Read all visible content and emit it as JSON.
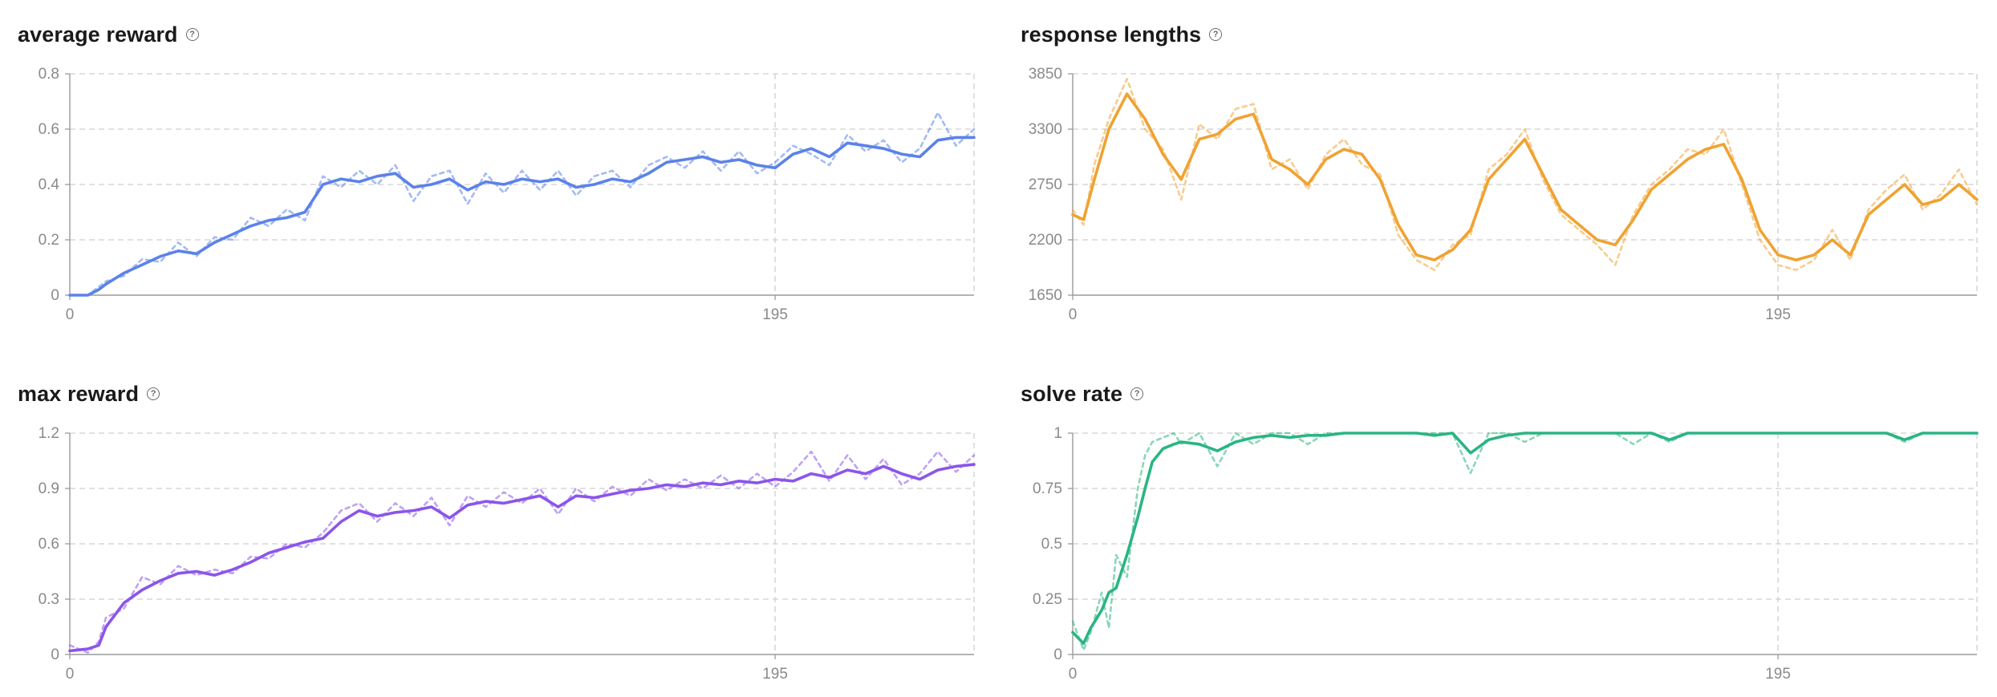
{
  "chart_data": [
    {
      "id": "avg",
      "type": "line",
      "title": "average reward",
      "color": "#5b82ea",
      "ylim": [
        0,
        0.8
      ],
      "yticks": [
        0,
        0.2,
        0.4,
        0.6,
        0.8
      ],
      "ytick_labels": [
        "0",
        "0.2",
        "0.4",
        "0.6",
        "0.8"
      ],
      "xlim": [
        0,
        250
      ],
      "xticks": [
        0,
        195
      ],
      "xtick_labels": [
        "0",
        "195"
      ],
      "grid": true,
      "series": [
        {
          "style": "solid",
          "x": [
            0,
            5,
            8,
            10,
            15,
            20,
            25,
            30,
            35,
            40,
            45,
            50,
            55,
            60,
            65,
            70,
            75,
            80,
            85,
            90,
            95,
            100,
            105,
            110,
            115,
            120,
            125,
            130,
            135,
            140,
            145,
            150,
            155,
            160,
            165,
            170,
            175,
            180,
            185,
            190,
            195,
            200,
            205,
            210,
            215,
            220,
            225,
            230,
            235,
            240,
            245,
            250
          ],
          "y": [
            0,
            0,
            0.02,
            0.04,
            0.08,
            0.11,
            0.14,
            0.16,
            0.15,
            0.19,
            0.22,
            0.25,
            0.27,
            0.28,
            0.3,
            0.4,
            0.42,
            0.41,
            0.43,
            0.44,
            0.39,
            0.4,
            0.42,
            0.38,
            0.41,
            0.4,
            0.42,
            0.41,
            0.42,
            0.39,
            0.4,
            0.42,
            0.41,
            0.44,
            0.48,
            0.49,
            0.5,
            0.48,
            0.49,
            0.47,
            0.46,
            0.51,
            0.53,
            0.5,
            0.55,
            0.54,
            0.53,
            0.51,
            0.5,
            0.56,
            0.57,
            0.57
          ]
        },
        {
          "style": "dashed",
          "x": [
            0,
            5,
            8,
            10,
            15,
            20,
            25,
            30,
            35,
            40,
            45,
            50,
            55,
            60,
            65,
            70,
            75,
            80,
            85,
            90,
            95,
            100,
            105,
            110,
            115,
            120,
            125,
            130,
            135,
            140,
            145,
            150,
            155,
            160,
            165,
            170,
            175,
            180,
            185,
            190,
            195,
            200,
            205,
            210,
            215,
            220,
            225,
            230,
            235,
            240,
            245,
            250
          ],
          "y": [
            0,
            0,
            0.03,
            0.05,
            0.07,
            0.13,
            0.12,
            0.19,
            0.14,
            0.21,
            0.2,
            0.28,
            0.25,
            0.31,
            0.27,
            0.43,
            0.39,
            0.45,
            0.4,
            0.47,
            0.34,
            0.43,
            0.45,
            0.33,
            0.44,
            0.37,
            0.45,
            0.38,
            0.45,
            0.36,
            0.43,
            0.45,
            0.39,
            0.47,
            0.5,
            0.46,
            0.52,
            0.45,
            0.52,
            0.44,
            0.48,
            0.54,
            0.51,
            0.47,
            0.58,
            0.52,
            0.56,
            0.48,
            0.53,
            0.66,
            0.54,
            0.6
          ]
        }
      ]
    },
    {
      "id": "resp",
      "type": "line",
      "title": "response lengths",
      "color": "#f0a232",
      "ylim": [
        1650,
        3850
      ],
      "yticks": [
        1650,
        2200,
        2750,
        3300,
        3850
      ],
      "ytick_labels": [
        "1650",
        "2200",
        "2750",
        "3300",
        "3850"
      ],
      "xlim": [
        0,
        250
      ],
      "xticks": [
        0,
        195
      ],
      "xtick_labels": [
        "0",
        "195"
      ],
      "grid": true,
      "series": [
        {
          "style": "solid",
          "x": [
            0,
            3,
            6,
            10,
            15,
            20,
            25,
            30,
            35,
            40,
            45,
            50,
            55,
            60,
            65,
            70,
            75,
            80,
            85,
            90,
            95,
            100,
            105,
            110,
            115,
            120,
            125,
            130,
            135,
            140,
            145,
            150,
            155,
            160,
            165,
            170,
            175,
            180,
            185,
            190,
            195,
            200,
            205,
            210,
            215,
            220,
            225,
            230,
            235,
            240,
            245,
            250
          ],
          "y": [
            2450,
            2400,
            2800,
            3300,
            3650,
            3400,
            3050,
            2800,
            3200,
            3250,
            3400,
            3450,
            3000,
            2900,
            2750,
            3000,
            3100,
            3050,
            2800,
            2350,
            2050,
            2000,
            2100,
            2300,
            2800,
            3000,
            3200,
            2850,
            2500,
            2350,
            2200,
            2150,
            2400,
            2700,
            2850,
            3000,
            3100,
            3150,
            2800,
            2300,
            2050,
            2000,
            2050,
            2200,
            2050,
            2450,
            2600,
            2750,
            2550,
            2600,
            2750,
            2600
          ]
        },
        {
          "style": "dashed",
          "x": [
            0,
            3,
            6,
            10,
            15,
            20,
            25,
            30,
            35,
            40,
            45,
            50,
            55,
            60,
            65,
            70,
            75,
            80,
            85,
            90,
            95,
            100,
            105,
            110,
            115,
            120,
            125,
            130,
            135,
            140,
            145,
            150,
            155,
            160,
            165,
            170,
            175,
            180,
            185,
            190,
            195,
            200,
            205,
            210,
            215,
            220,
            225,
            230,
            235,
            240,
            245,
            250
          ],
          "y": [
            2500,
            2350,
            2950,
            3400,
            3800,
            3300,
            3100,
            2600,
            3350,
            3200,
            3500,
            3550,
            2900,
            3000,
            2700,
            3050,
            3200,
            2950,
            2850,
            2250,
            2000,
            1900,
            2150,
            2250,
            2900,
            3050,
            3300,
            2800,
            2450,
            2300,
            2150,
            1950,
            2450,
            2750,
            2900,
            3100,
            3050,
            3300,
            2750,
            2200,
            1950,
            1900,
            2000,
            2300,
            2000,
            2500,
            2700,
            2850,
            2500,
            2650,
            2900,
            2550
          ]
        }
      ]
    },
    {
      "id": "max",
      "type": "line",
      "title": "max reward",
      "color": "#8b55ea",
      "ylim": [
        0,
        1.2
      ],
      "yticks": [
        0,
        0.3,
        0.6,
        0.9,
        1.2
      ],
      "ytick_labels": [
        "0",
        "0.3",
        "0.6",
        "0.9",
        "1.2"
      ],
      "xlim": [
        0,
        250
      ],
      "xticks": [
        0,
        195
      ],
      "xtick_labels": [
        "0",
        "195"
      ],
      "grid": true,
      "series": [
        {
          "style": "solid",
          "x": [
            0,
            5,
            8,
            10,
            15,
            20,
            25,
            30,
            35,
            40,
            45,
            50,
            55,
            60,
            65,
            70,
            75,
            80,
            85,
            90,
            95,
            100,
            105,
            110,
            115,
            120,
            125,
            130,
            135,
            140,
            145,
            150,
            155,
            160,
            165,
            170,
            175,
            180,
            185,
            190,
            195,
            200,
            205,
            210,
            215,
            220,
            225,
            230,
            235,
            240,
            245,
            250
          ],
          "y": [
            0.02,
            0.03,
            0.05,
            0.15,
            0.28,
            0.35,
            0.4,
            0.44,
            0.45,
            0.43,
            0.46,
            0.5,
            0.55,
            0.58,
            0.61,
            0.63,
            0.72,
            0.78,
            0.75,
            0.77,
            0.78,
            0.8,
            0.74,
            0.81,
            0.83,
            0.82,
            0.84,
            0.86,
            0.8,
            0.86,
            0.85,
            0.87,
            0.89,
            0.9,
            0.92,
            0.91,
            0.93,
            0.92,
            0.94,
            0.93,
            0.95,
            0.94,
            0.98,
            0.96,
            1.0,
            0.98,
            1.02,
            0.98,
            0.95,
            1.0,
            1.02,
            1.03
          ]
        },
        {
          "style": "dashed",
          "x": [
            0,
            5,
            8,
            10,
            15,
            20,
            25,
            30,
            35,
            40,
            45,
            50,
            55,
            60,
            65,
            70,
            75,
            80,
            85,
            90,
            95,
            100,
            105,
            110,
            115,
            120,
            125,
            130,
            135,
            140,
            145,
            150,
            155,
            160,
            165,
            170,
            175,
            180,
            185,
            190,
            195,
            200,
            205,
            210,
            215,
            220,
            225,
            230,
            235,
            240,
            245,
            250
          ],
          "y": [
            0.05,
            0.01,
            0.07,
            0.2,
            0.25,
            0.42,
            0.38,
            0.48,
            0.43,
            0.46,
            0.44,
            0.53,
            0.52,
            0.6,
            0.58,
            0.66,
            0.78,
            0.82,
            0.72,
            0.82,
            0.75,
            0.85,
            0.7,
            0.86,
            0.8,
            0.88,
            0.82,
            0.9,
            0.76,
            0.9,
            0.83,
            0.91,
            0.86,
            0.95,
            0.89,
            0.95,
            0.9,
            0.97,
            0.9,
            0.98,
            0.91,
            0.99,
            1.1,
            0.94,
            1.08,
            0.95,
            1.06,
            0.92,
            0.98,
            1.1,
            0.99,
            1.08
          ]
        }
      ]
    },
    {
      "id": "solve",
      "type": "line",
      "title": "solve rate",
      "color": "#2ab582",
      "ylim": [
        0,
        1
      ],
      "yticks": [
        0,
        0.25,
        0.5,
        0.75,
        1
      ],
      "ytick_labels": [
        "0",
        "0.25",
        "0.5",
        "0.75",
        "1"
      ],
      "xlim": [
        0,
        250
      ],
      "xticks": [
        0,
        195
      ],
      "xtick_labels": [
        "0",
        "195"
      ],
      "grid": true,
      "series": [
        {
          "style": "solid",
          "x": [
            0,
            3,
            5,
            8,
            10,
            12,
            15,
            18,
            20,
            22,
            25,
            28,
            30,
            35,
            40,
            45,
            50,
            55,
            60,
            65,
            70,
            75,
            80,
            85,
            90,
            95,
            100,
            105,
            110,
            115,
            120,
            125,
            130,
            135,
            140,
            145,
            150,
            155,
            160,
            165,
            170,
            175,
            180,
            185,
            190,
            195,
            200,
            205,
            210,
            215,
            220,
            225,
            230,
            235,
            240,
            245,
            250
          ],
          "y": [
            0.1,
            0.05,
            0.12,
            0.2,
            0.28,
            0.3,
            0.45,
            0.62,
            0.75,
            0.87,
            0.93,
            0.95,
            0.96,
            0.95,
            0.92,
            0.96,
            0.98,
            0.99,
            0.98,
            0.99,
            0.99,
            1,
            1,
            1,
            1,
            1,
            0.99,
            1,
            0.91,
            0.97,
            0.99,
            1,
            1,
            1,
            1,
            1,
            1,
            1,
            1,
            0.97,
            1,
            1,
            1,
            1,
            1,
            1,
            1,
            1,
            1,
            1,
            1,
            1,
            0.97,
            1,
            1,
            1,
            1
          ]
        },
        {
          "style": "dashed",
          "x": [
            0,
            3,
            5,
            8,
            10,
            12,
            15,
            18,
            20,
            22,
            25,
            28,
            30,
            35,
            40,
            45,
            50,
            55,
            60,
            65,
            70,
            75,
            80,
            85,
            90,
            95,
            100,
            105,
            110,
            115,
            120,
            125,
            130,
            135,
            140,
            145,
            150,
            155,
            160,
            165,
            170,
            175,
            180,
            185,
            190,
            195,
            200,
            205,
            210,
            215,
            220,
            225,
            230,
            235,
            240,
            245,
            250
          ],
          "y": [
            0.15,
            0.02,
            0.1,
            0.28,
            0.12,
            0.45,
            0.35,
            0.75,
            0.9,
            0.96,
            0.98,
            1,
            0.95,
            1,
            0.85,
            1,
            0.95,
            1,
            1,
            0.95,
            1,
            1,
            1,
            1,
            1,
            1,
            1,
            1,
            0.82,
            1,
            1,
            0.96,
            1,
            1,
            1,
            1,
            1,
            0.95,
            1,
            0.96,
            1,
            1,
            1,
            1,
            1,
            1,
            1,
            1,
            1,
            1,
            1,
            1,
            0.96,
            1,
            1,
            1,
            1
          ]
        }
      ]
    }
  ]
}
